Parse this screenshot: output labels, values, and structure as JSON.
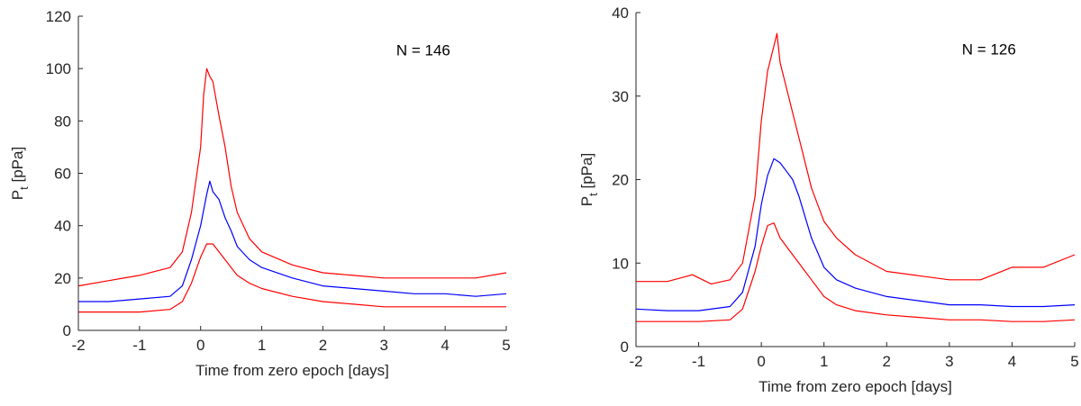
{
  "chart_data": [
    {
      "type": "line",
      "xlabel": "Time from zero epoch [days]",
      "ylabel_main": "P",
      "ylabel_sub": "t",
      "ylabel_rest": " [pPa]",
      "xlim": [
        -2,
        5
      ],
      "ylim": [
        0,
        120
      ],
      "xticks": [
        -2,
        -1,
        0,
        1,
        2,
        3,
        4,
        5
      ],
      "yticks": [
        0,
        20,
        40,
        60,
        80,
        100,
        120
      ],
      "annotation": "N = 146",
      "annotation_pos": [
        3.2,
        105
      ],
      "series": [
        {
          "color": "#ff0000",
          "x": [
            -2,
            -1.5,
            -1,
            -0.5,
            -0.3,
            -0.15,
            0,
            0.05,
            0.1,
            0.15,
            0.2,
            0.3,
            0.4,
            0.5,
            0.6,
            0.8,
            1,
            1.5,
            2,
            2.5,
            3,
            3.5,
            4,
            4.5,
            5
          ],
          "y": [
            17,
            19,
            21,
            24,
            30,
            45,
            70,
            90,
            100,
            97,
            95,
            82,
            70,
            55,
            45,
            35,
            30,
            25,
            22,
            21,
            20,
            20,
            20,
            20,
            22
          ]
        },
        {
          "color": "#0000ff",
          "x": [
            -2,
            -1.5,
            -1,
            -0.5,
            -0.3,
            -0.15,
            0,
            0.1,
            0.15,
            0.2,
            0.3,
            0.4,
            0.5,
            0.6,
            0.8,
            1,
            1.5,
            2,
            2.5,
            3,
            3.5,
            4,
            4.5,
            5
          ],
          "y": [
            11,
            11,
            12,
            13,
            17,
            27,
            40,
            52,
            57,
            53,
            50,
            43,
            38,
            32,
            27,
            24,
            20,
            17,
            16,
            15,
            14,
            14,
            13,
            14
          ]
        },
        {
          "color": "#ff0000",
          "x": [
            -2,
            -1.5,
            -1,
            -0.5,
            -0.3,
            -0.15,
            0,
            0.1,
            0.2,
            0.3,
            0.4,
            0.5,
            0.6,
            0.8,
            1,
            1.5,
            2,
            2.5,
            3,
            3.5,
            4,
            4.5,
            5
          ],
          "y": [
            7,
            7,
            7,
            8,
            11,
            18,
            28,
            33,
            33,
            30,
            27,
            24,
            21,
            18,
            16,
            13,
            11,
            10,
            9,
            9,
            9,
            9,
            9
          ]
        }
      ]
    },
    {
      "type": "line",
      "xlabel": "Time from zero epoch [days]",
      "ylabel_main": "P",
      "ylabel_sub": "t",
      "ylabel_rest": " [pPa]",
      "xlim": [
        -2,
        5
      ],
      "ylim": [
        0,
        40
      ],
      "xticks": [
        -2,
        -1,
        0,
        1,
        2,
        3,
        4,
        5
      ],
      "yticks": [
        0,
        10,
        20,
        30,
        40
      ],
      "annotation": "N = 126",
      "annotation_pos": [
        3.2,
        35
      ],
      "series": [
        {
          "color": "#ff0000",
          "x": [
            -2,
            -1.5,
            -1.1,
            -0.8,
            -0.5,
            -0.3,
            -0.1,
            0,
            0.1,
            0.2,
            0.25,
            0.3,
            0.4,
            0.5,
            0.6,
            0.8,
            1,
            1.2,
            1.5,
            2,
            2.5,
            3,
            3.5,
            4,
            4.5,
            5
          ],
          "y": [
            7.8,
            7.8,
            8.6,
            7.5,
            8,
            10,
            18,
            27,
            33,
            36,
            37.5,
            34,
            31,
            28,
            25,
            19,
            15,
            13,
            11,
            9,
            8.5,
            8,
            8,
            9.5,
            9.5,
            11
          ]
        },
        {
          "color": "#0000ff",
          "x": [
            -2,
            -1.5,
            -1,
            -0.5,
            -0.3,
            -0.1,
            0,
            0.1,
            0.2,
            0.3,
            0.4,
            0.5,
            0.6,
            0.8,
            1,
            1.2,
            1.5,
            2,
            2.5,
            3,
            3.5,
            4,
            4.5,
            5
          ],
          "y": [
            4.5,
            4.3,
            4.3,
            4.8,
            6.5,
            12,
            17,
            20.5,
            22.5,
            22,
            21,
            20,
            18,
            13,
            9.5,
            8,
            7,
            6,
            5.5,
            5,
            5,
            4.8,
            4.8,
            5
          ]
        },
        {
          "color": "#ff0000",
          "x": [
            -2,
            -1.5,
            -1,
            -0.5,
            -0.3,
            -0.1,
            0,
            0.1,
            0.2,
            0.3,
            0.5,
            0.8,
            1,
            1.2,
            1.5,
            2,
            2.5,
            3,
            3.5,
            4,
            4.5,
            5
          ],
          "y": [
            3,
            3,
            3,
            3.2,
            4.5,
            9,
            12,
            14.5,
            14.8,
            13,
            11,
            8,
            6,
            5,
            4.3,
            3.8,
            3.5,
            3.2,
            3.2,
            3,
            3,
            3.2
          ]
        }
      ]
    }
  ]
}
